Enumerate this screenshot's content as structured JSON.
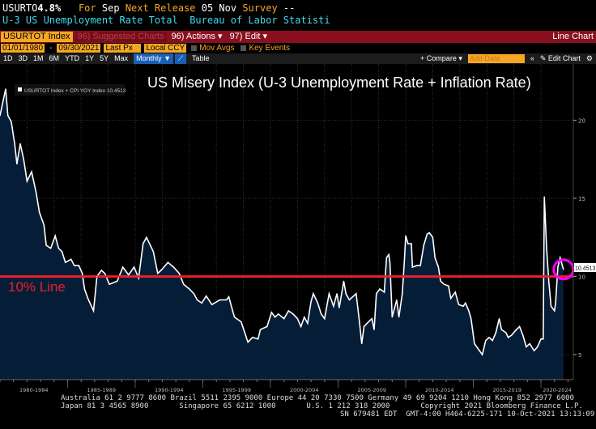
{
  "header": {
    "ticker": "USURTO",
    "value": "4.8%",
    "for_label": "For",
    "period": "Sep",
    "next_release_label": "Next Release",
    "next_release": "05 Nov",
    "survey_label": "Survey",
    "survey": "--",
    "description": "U-3 US Unemployment Rate Total  Bureau of Labor Statisti"
  },
  "toolbar": {
    "security": "USURTOT Index",
    "suggested": "96) Suggested Charts",
    "actions": "96) Actions ▾",
    "edit": "97) Edit ▾",
    "chart_type": "Line Chart",
    "start_date": "01/01/1980",
    "end_date": "09/30/2021",
    "field": "Last Px",
    "currency": "Local CCY",
    "mov_avgs": "Mov Avgs",
    "key_events": "Key Events",
    "periods": [
      "1D",
      "3D",
      "1M",
      "6M",
      "YTD",
      "1Y",
      "5Y",
      "Max"
    ],
    "frequency": "Monthly ▼",
    "table": "Table",
    "compare": "+ Compare ▾",
    "add_data_placeholder": "Add Data",
    "edit_chart": "✎ Edit Chart"
  },
  "colors": {
    "line": "#ffffff",
    "fill": "#061d38",
    "ten_line": "#e8202a",
    "highlight": "#ff00ff",
    "accent": "#f5a623",
    "bar": "#8a1020"
  },
  "chart_data": {
    "type": "area",
    "title": "US Misery Index (U-3 Unemployment Rate + Inflation Rate)",
    "legend": "USURTOT Index + CPI YOY Index 10.4513",
    "legend_placement": "top-left",
    "last_value_label": "10.4513",
    "annotation": "10% Line",
    "reference_line": 10,
    "ylim": [
      3.4,
      23.6
    ],
    "yticks": [
      5,
      10,
      15,
      20
    ],
    "xlim": [
      "1980-01",
      "2022-03"
    ],
    "xtick_labels": [
      "1980-1984",
      "1985-1989",
      "1990-1994",
      "1995-1999",
      "2000-2004",
      "2005-2009",
      "2010-2014",
      "2015-2019",
      "2020-2024"
    ],
    "grid": true,
    "points": [
      [
        "1980-01",
        20.3
      ],
      [
        "1980-06",
        22.0
      ],
      [
        "1980-08",
        20.3
      ],
      [
        "1980-11",
        19.9
      ],
      [
        "1981-02",
        18.5
      ],
      [
        "1981-04",
        17.2
      ],
      [
        "1981-07",
        18.5
      ],
      [
        "1981-10",
        17.5
      ],
      [
        "1982-01",
        16.1
      ],
      [
        "1982-05",
        16.7
      ],
      [
        "1982-09",
        15.4
      ],
      [
        "1982-12",
        14.1
      ],
      [
        "1983-04",
        13.3
      ],
      [
        "1983-06",
        12.0
      ],
      [
        "1983-10",
        11.8
      ],
      [
        "1984-02",
        12.6
      ],
      [
        "1984-05",
        11.8
      ],
      [
        "1984-08",
        11.6
      ],
      [
        "1984-11",
        10.9
      ],
      [
        "1985-04",
        11.1
      ],
      [
        "1985-07",
        10.7
      ],
      [
        "1985-11",
        10.7
      ],
      [
        "1986-02",
        10.2
      ],
      [
        "1986-04",
        9.2
      ],
      [
        "1986-07",
        8.6
      ],
      [
        "1986-12",
        7.8
      ],
      [
        "1987-03",
        10.0
      ],
      [
        "1987-07",
        10.4
      ],
      [
        "1987-10",
        10.2
      ],
      [
        "1988-02",
        9.5
      ],
      [
        "1988-09",
        9.7
      ],
      [
        "1989-02",
        10.6
      ],
      [
        "1989-07",
        10.1
      ],
      [
        "1989-12",
        10.6
      ],
      [
        "1990-04",
        9.9
      ],
      [
        "1990-08",
        12.1
      ],
      [
        "1990-11",
        12.5
      ],
      [
        "1991-05",
        11.6
      ],
      [
        "1991-09",
        10.2
      ],
      [
        "1991-12",
        10.4
      ],
      [
        "1992-06",
        10.9
      ],
      [
        "1992-11",
        10.6
      ],
      [
        "1993-04",
        10.2
      ],
      [
        "1993-08",
        9.5
      ],
      [
        "1994-01",
        9.2
      ],
      [
        "1994-05",
        8.9
      ],
      [
        "1994-08",
        8.5
      ],
      [
        "1994-12",
        8.3
      ],
      [
        "1995-04",
        8.75
      ],
      [
        "1995-09",
        8.2
      ],
      [
        "1996-04",
        8.5
      ],
      [
        "1996-10",
        8.5
      ],
      [
        "1996-12",
        8.7
      ],
      [
        "1997-05",
        7.4
      ],
      [
        "1997-11",
        7.1
      ],
      [
        "1998-04",
        6.0
      ],
      [
        "1998-05",
        5.8
      ],
      [
        "1998-09",
        6.1
      ],
      [
        "1999-02",
        6.0
      ],
      [
        "1999-04",
        6.6
      ],
      [
        "1999-10",
        6.8
      ],
      [
        "2000-02",
        7.7
      ],
      [
        "2000-05",
        7.4
      ],
      [
        "2000-08",
        7.6
      ],
      [
        "2001-01",
        7.3
      ],
      [
        "2001-05",
        7.8
      ],
      [
        "2001-09",
        7.6
      ],
      [
        "2002-01",
        7.3
      ],
      [
        "2002-04",
        6.8
      ],
      [
        "2002-07",
        7.4
      ],
      [
        "2002-10",
        7.0
      ],
      [
        "2003-01",
        8.4
      ],
      [
        "2003-03",
        8.9
      ],
      [
        "2003-07",
        8.3
      ],
      [
        "2003-10",
        7.6
      ],
      [
        "2004-01",
        7.3
      ],
      [
        "2004-05",
        8.9
      ],
      [
        "2004-09",
        8.1
      ],
      [
        "2004-12",
        8.9
      ],
      [
        "2005-02",
        8.0
      ],
      [
        "2005-06",
        9.7
      ],
      [
        "2005-08",
        8.9
      ],
      [
        "2005-11",
        8.5
      ],
      [
        "2006-05",
        8.9
      ],
      [
        "2006-08",
        7.1
      ],
      [
        "2006-10",
        5.7
      ],
      [
        "2006-12",
        6.8
      ],
      [
        "2007-04",
        7.1
      ],
      [
        "2007-07",
        7.3
      ],
      [
        "2007-09",
        6.6
      ],
      [
        "2007-11",
        8.9
      ],
      [
        "2008-02",
        9.2
      ],
      [
        "2008-06",
        9.0
      ],
      [
        "2008-08",
        11.2
      ],
      [
        "2008-10",
        11.4
      ],
      [
        "2008-11",
        10.9
      ],
      [
        "2009-01",
        7.4
      ],
      [
        "2009-05",
        8.5
      ],
      [
        "2009-07",
        7.4
      ],
      [
        "2009-10",
        8.9
      ],
      [
        "2009-12",
        11.2
      ],
      [
        "2010-01",
        12.6
      ],
      [
        "2010-03",
        12.1
      ],
      [
        "2010-06",
        12.1
      ],
      [
        "2010-07",
        10.6
      ],
      [
        "2010-11",
        10.7
      ],
      [
        "2011-02",
        10.7
      ],
      [
        "2011-05",
        12.0
      ],
      [
        "2011-08",
        12.7
      ],
      [
        "2011-10",
        12.8
      ],
      [
        "2012-01",
        12.5
      ],
      [
        "2012-03",
        11.2
      ],
      [
        "2012-06",
        10.6
      ],
      [
        "2012-08",
        9.7
      ],
      [
        "2012-11",
        9.5
      ],
      [
        "2013-03",
        9.4
      ],
      [
        "2013-05",
        8.6
      ],
      [
        "2013-09",
        9.0
      ],
      [
        "2013-12",
        8.2
      ],
      [
        "2014-04",
        8.1
      ],
      [
        "2014-06",
        8.3
      ],
      [
        "2014-09",
        7.8
      ],
      [
        "2014-11",
        7.3
      ],
      [
        "2015-02",
        5.7
      ],
      [
        "2015-04",
        5.5
      ],
      [
        "2015-09",
        5.0
      ],
      [
        "2015-12",
        5.9
      ],
      [
        "2016-03",
        6.1
      ],
      [
        "2016-06",
        5.9
      ],
      [
        "2016-09",
        6.4
      ],
      [
        "2016-12",
        7.3
      ],
      [
        "2017-02",
        6.6
      ],
      [
        "2017-06",
        6.4
      ],
      [
        "2017-08",
        6.1
      ],
      [
        "2017-11",
        6.25
      ],
      [
        "2018-02",
        6.5
      ],
      [
        "2018-06",
        6.8
      ],
      [
        "2018-09",
        6.25
      ],
      [
        "2018-12",
        5.5
      ],
      [
        "2019-03",
        5.7
      ],
      [
        "2019-07",
        5.25
      ],
      [
        "2019-10",
        5.5
      ],
      [
        "2020-01",
        6.0
      ],
      [
        "2020-03",
        6.0
      ],
      [
        "2020-04",
        15.1
      ],
      [
        "2020-06",
        11.8
      ],
      [
        "2020-08",
        9.7
      ],
      [
        "2020-10",
        8.1
      ],
      [
        "2021-01",
        7.8
      ],
      [
        "2021-02",
        8.3
      ],
      [
        "2021-04",
        10.6
      ],
      [
        "2021-06",
        11.2
      ],
      [
        "2021-09",
        10.4513
      ]
    ]
  },
  "footer": {
    "line1": "Australia 61 2 9777 8600 Brazil 5511 2395 9000 Europe 44 20 7330 7500 Germany 49 69 9204 1210 Hong Kong 852 2977 6000",
    "line2": "Japan 81 3 4565 8900       Singapore 65 6212 1000       U.S. 1 212 318 2000       Copyright 2021 Bloomberg Finance L.P.",
    "line3": "SN 679481 EDT  GMT-4:00 H464-6225-171 10-Oct-2021 13:13:09"
  }
}
